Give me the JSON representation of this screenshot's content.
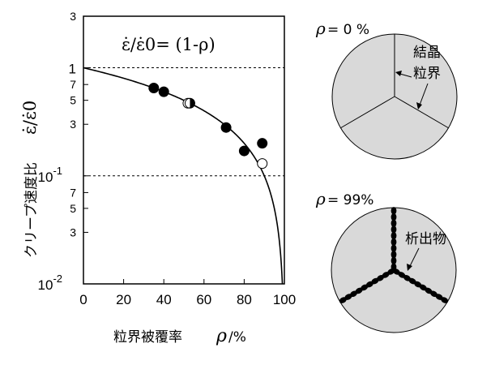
{
  "chart_data": {
    "type": "scatter",
    "xlabel": "粒界被覆率",
    "xlabel_symbol": "ρ",
    "xlabel_unit": "/%",
    "ylabel": "クリープ速度比",
    "ylabel_symbol": "ε̇/ε̇0",
    "formula": "ε̇/ε̇0= (1-ρ)",
    "y_scale": "log",
    "xlim": [
      0,
      100
    ],
    "ylim": [
      0.01,
      3
    ],
    "x_ticks": [
      "0",
      "20",
      "40",
      "60",
      "80",
      "100"
    ],
    "y_major_ticks": [
      {
        "value": 3,
        "label": "3"
      },
      {
        "value": 1,
        "label": "1"
      },
      {
        "value": 0.7,
        "label": "7"
      },
      {
        "value": 0.5,
        "label": "5"
      },
      {
        "value": 0.3,
        "label": "3"
      },
      {
        "value": 0.1,
        "label": "10"
      },
      {
        "value": 0.07,
        "label": "7"
      },
      {
        "value": 0.05,
        "label": "5"
      },
      {
        "value": 0.03,
        "label": "3"
      },
      {
        "value": 0.01,
        "label": "10"
      }
    ],
    "y_exponent_labels": [
      {
        "value": 0.1,
        "exp": "-1"
      },
      {
        "value": 0.01,
        "exp": "-2"
      }
    ],
    "reference_lines": [
      1,
      0.1
    ],
    "series": [
      {
        "marker": "filled",
        "points": [
          [
            35,
            0.65
          ],
          [
            40,
            0.6
          ],
          [
            71,
            0.28
          ],
          [
            80,
            0.17
          ],
          [
            89,
            0.2
          ]
        ]
      },
      {
        "marker": "open",
        "points": [
          [
            52,
            0.47
          ],
          [
            89,
            0.13
          ]
        ]
      },
      {
        "marker": "half",
        "points": [
          [
            53,
            0.47
          ]
        ]
      }
    ],
    "curve": {
      "function": "1 - rho/100",
      "x_range": [
        0,
        99.9
      ]
    }
  },
  "diagram_top": {
    "rho_label": "= 0 %",
    "text_line1": "結晶",
    "text_line2": "粒界"
  },
  "diagram_bottom": {
    "rho_label": "= 99%",
    "text": "析出物"
  },
  "colors": {
    "fill": "#d9d9d9",
    "ink": "#000000"
  }
}
